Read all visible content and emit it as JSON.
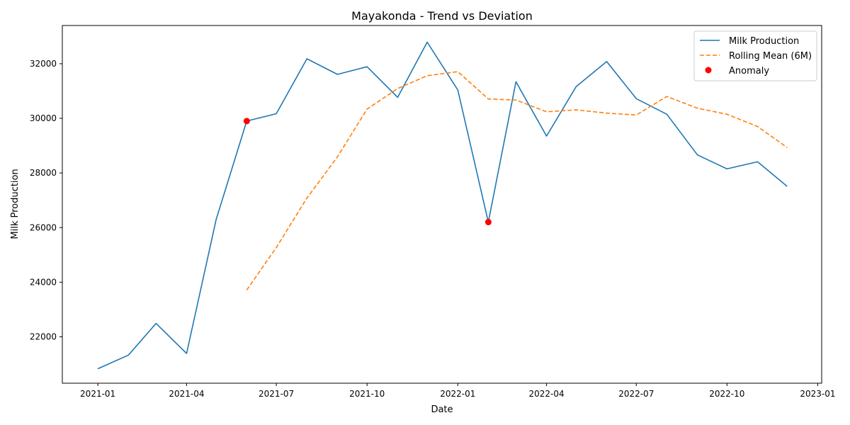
{
  "chart_data": {
    "type": "line",
    "title": "Mayakonda - Trend vs Deviation",
    "xlabel": "Date",
    "ylabel": "Milk Production",
    "x": [
      "2021-01",
      "2021-02",
      "2021-03",
      "2021-04",
      "2021-05",
      "2021-06",
      "2021-07",
      "2021-08",
      "2021-09",
      "2021-10",
      "2021-11",
      "2021-12",
      "2022-01",
      "2022-02",
      "2022-03",
      "2022-04",
      "2022-05",
      "2022-06",
      "2022-07",
      "2022-08",
      "2022-09",
      "2022-10",
      "2022-11",
      "2022-12"
    ],
    "series": [
      {
        "name": "Milk Production",
        "color": "#1f77b4",
        "style": "solid",
        "values": [
          20830,
          21330,
          22490,
          21390,
          26300,
          29900,
          30170,
          32180,
          31610,
          31890,
          30770,
          32790,
          31040,
          26200,
          31340,
          29350,
          31160,
          32080,
          30720,
          30150,
          28660,
          28150,
          28410,
          27510
        ]
      },
      {
        "name": "Rolling Mean (6M)",
        "color": "#ff7f0e",
        "style": "dashed",
        "values": [
          null,
          null,
          null,
          null,
          null,
          23710,
          25270,
          27080,
          28590,
          30340,
          31090,
          31560,
          31710,
          30710,
          30670,
          30240,
          30310,
          30190,
          30120,
          30800,
          30370,
          30150,
          29700,
          28930
        ]
      },
      {
        "name": "Anomaly",
        "color": "#ff0000",
        "style": "scatter",
        "points": [
          {
            "x": "2021-06",
            "y": 29900
          },
          {
            "x": "2022-02",
            "y": 26200
          }
        ]
      }
    ],
    "xticks": [
      "2021-01",
      "2021-04",
      "2021-07",
      "2021-10",
      "2022-01",
      "2022-04",
      "2022-07",
      "2022-10",
      "2023-01"
    ],
    "yticks": [
      22000,
      24000,
      26000,
      28000,
      30000,
      32000
    ],
    "ylim": [
      20300,
      33400
    ],
    "xlim": [
      "2020-11-26",
      "2023-01-05"
    ],
    "grid": false,
    "legend_position": "top-right"
  }
}
